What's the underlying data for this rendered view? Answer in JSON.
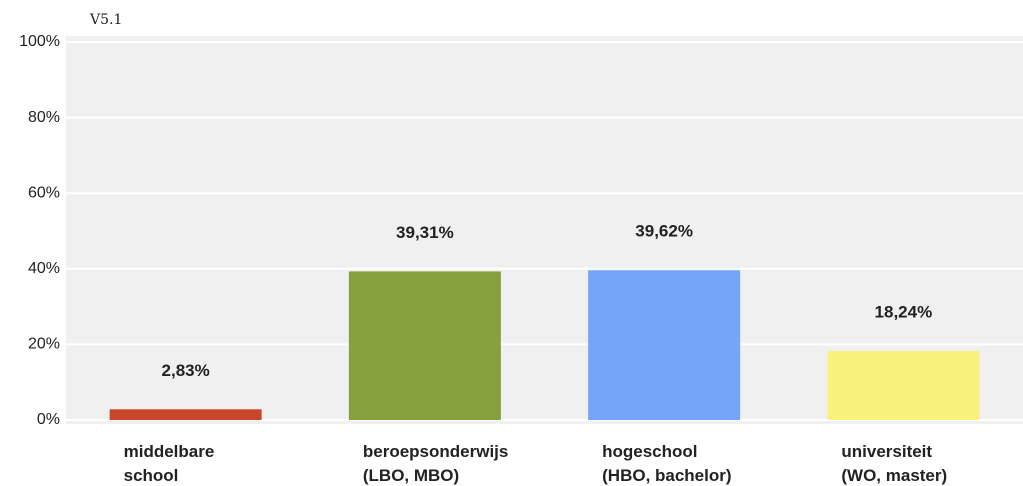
{
  "chart_data": {
    "type": "bar",
    "annotation": "V5.1",
    "categories": [
      [
        "middelbare",
        "school"
      ],
      [
        "beroepsonderwijs",
        "(LBO, MBO)"
      ],
      [
        "hogeschool",
        "(HBO, bachelor)"
      ],
      [
        "universiteit",
        "(WO, master)"
      ]
    ],
    "values": [
      2.83,
      39.31,
      39.62,
      18.24
    ],
    "value_labels": [
      "2,83%",
      "39,31%",
      "39,62%",
      "18,24%"
    ],
    "colors": [
      "#c8472b",
      "#85a03d",
      "#75a5fb",
      "#f8f17c"
    ],
    "ylim": [
      0,
      100
    ],
    "yticks": [
      {
        "value": 0,
        "label": "0%"
      },
      {
        "value": 20,
        "label": "20%"
      },
      {
        "value": 40,
        "label": "40%"
      },
      {
        "value": 60,
        "label": "60%"
      },
      {
        "value": 80,
        "label": "80%"
      },
      {
        "value": 100,
        "label": "100%"
      }
    ],
    "grid": true
  }
}
